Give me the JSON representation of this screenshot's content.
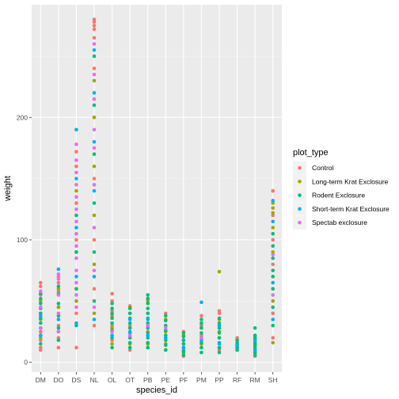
{
  "chart_data": {
    "type": "scatter",
    "xlabel": "species_id",
    "ylabel": "weight",
    "categories": [
      "DM",
      "DO",
      "DS",
      "NL",
      "OL",
      "OT",
      "PB",
      "PE",
      "PF",
      "PM",
      "PP",
      "RF",
      "RM",
      "SH"
    ],
    "yticks": [
      0,
      100,
      200
    ],
    "ylim": [
      -8,
      292
    ],
    "grid": true,
    "legend": {
      "title": "plot_type",
      "position": "right",
      "entries": [
        "Control",
        "Long-term Krat Exclosure",
        "Rodent Exclosure",
        "Short-term Krat Exclosure",
        "Spectab exclosure"
      ]
    },
    "colors": {
      "Control": "#F8766D",
      "Long-term Krat Exclosure": "#A3A500",
      "Rodent Exclosure": "#00BF7D",
      "Short-term Krat Exclosure": "#00B0F6",
      "Spectab exclosure": "#E76BF3"
    },
    "series": [
      {
        "name": "Control",
        "points": [
          [
            "DM",
            10
          ],
          [
            "DM",
            12
          ],
          [
            "DM",
            18
          ],
          [
            "DM",
            25
          ],
          [
            "DM",
            40
          ],
          [
            "DM",
            55
          ],
          [
            "DM",
            62
          ],
          [
            "DM",
            65
          ],
          [
            "DO",
            12
          ],
          [
            "DO",
            20
          ],
          [
            "DO",
            30
          ],
          [
            "DO",
            45
          ],
          [
            "DO",
            58
          ],
          [
            "DO",
            65
          ],
          [
            "DO",
            70
          ],
          [
            "DS",
            12
          ],
          [
            "DS",
            40
          ],
          [
            "DS",
            60
          ],
          [
            "DS",
            100
          ],
          [
            "DS",
            130
          ],
          [
            "DS",
            160
          ],
          [
            "DS",
            172
          ],
          [
            "NL",
            30
          ],
          [
            "NL",
            60
          ],
          [
            "NL",
            100
          ],
          [
            "NL",
            150
          ],
          [
            "NL",
            200
          ],
          [
            "NL",
            240
          ],
          [
            "NL",
            265
          ],
          [
            "NL",
            272
          ],
          [
            "NL",
            275
          ],
          [
            "NL",
            278
          ],
          [
            "NL",
            280
          ],
          [
            "OL",
            18
          ],
          [
            "OL",
            30
          ],
          [
            "OL",
            42
          ],
          [
            "OL",
            50
          ],
          [
            "OL",
            56
          ],
          [
            "OT",
            10
          ],
          [
            "OT",
            20
          ],
          [
            "OT",
            30
          ],
          [
            "OT",
            40
          ],
          [
            "OT",
            46
          ],
          [
            "PB",
            12
          ],
          [
            "PB",
            25
          ],
          [
            "PB",
            40
          ],
          [
            "PB",
            52
          ],
          [
            "PE",
            10
          ],
          [
            "PE",
            20
          ],
          [
            "PE",
            30
          ],
          [
            "PE",
            40
          ],
          [
            "PF",
            5
          ],
          [
            "PF",
            10
          ],
          [
            "PF",
            18
          ],
          [
            "PF",
            25
          ],
          [
            "PM",
            12
          ],
          [
            "PM",
            22
          ],
          [
            "PM",
            30
          ],
          [
            "PM",
            38
          ],
          [
            "PP",
            10
          ],
          [
            "PP",
            20
          ],
          [
            "PP",
            30
          ],
          [
            "PP",
            40
          ],
          [
            "PP",
            42
          ],
          [
            "RF",
            10
          ],
          [
            "RF",
            15
          ],
          [
            "RF",
            20
          ],
          [
            "RM",
            5
          ],
          [
            "RM",
            10
          ],
          [
            "RM",
            15
          ],
          [
            "RM",
            20
          ],
          [
            "SH",
            20
          ],
          [
            "SH",
            40
          ],
          [
            "SH",
            60
          ],
          [
            "SH",
            80
          ],
          [
            "SH",
            100
          ],
          [
            "SH",
            120
          ],
          [
            "SH",
            140
          ]
        ]
      },
      {
        "name": "Long-term Krat Exclosure",
        "points": [
          [
            "DM",
            20
          ],
          [
            "DM",
            35
          ],
          [
            "DM",
            50
          ],
          [
            "DO",
            25
          ],
          [
            "DO",
            45
          ],
          [
            "DO",
            60
          ],
          [
            "DS",
            50
          ],
          [
            "DS",
            90
          ],
          [
            "DS",
            140
          ],
          [
            "NL",
            40
          ],
          [
            "NL",
            80
          ],
          [
            "NL",
            120
          ],
          [
            "NL",
            160
          ],
          [
            "NL",
            200
          ],
          [
            "NL",
            230
          ],
          [
            "OL",
            15
          ],
          [
            "OL",
            28
          ],
          [
            "OL",
            38
          ],
          [
            "OT",
            15
          ],
          [
            "OT",
            28
          ],
          [
            "OT",
            45
          ],
          [
            "PB",
            15
          ],
          [
            "PB",
            30
          ],
          [
            "PB",
            50
          ],
          [
            "PE",
            15
          ],
          [
            "PE",
            25
          ],
          [
            "PE",
            35
          ],
          [
            "PF",
            8
          ],
          [
            "PF",
            15
          ],
          [
            "PF",
            22
          ],
          [
            "PM",
            15
          ],
          [
            "PM",
            28
          ],
          [
            "PP",
            12
          ],
          [
            "PP",
            25
          ],
          [
            "PP",
            35
          ],
          [
            "PP",
            74
          ],
          [
            "RF",
            12
          ],
          [
            "RF",
            18
          ],
          [
            "RM",
            8
          ],
          [
            "RM",
            14
          ],
          [
            "SH",
            16
          ],
          [
            "SH",
            50
          ],
          [
            "SH",
            90
          ],
          [
            "SH",
            110
          ],
          [
            "SH",
            122
          ],
          [
            "SH",
            126
          ],
          [
            "SH",
            130
          ]
        ]
      },
      {
        "name": "Rodent Exclosure",
        "points": [
          [
            "DM",
            15
          ],
          [
            "DM",
            22
          ],
          [
            "DM",
            28
          ],
          [
            "DM",
            32
          ],
          [
            "DM",
            36
          ],
          [
            "DM",
            40
          ],
          [
            "DM",
            44
          ],
          [
            "DM",
            48
          ],
          [
            "DM",
            52
          ],
          [
            "DM",
            56
          ],
          [
            "DO",
            18
          ],
          [
            "DO",
            28
          ],
          [
            "DO",
            38
          ],
          [
            "DO",
            48
          ],
          [
            "DO",
            56
          ],
          [
            "DO",
            62
          ],
          [
            "DS",
            30
          ],
          [
            "DS",
            60
          ],
          [
            "DS",
            90
          ],
          [
            "DS",
            120
          ],
          [
            "NL",
            50
          ],
          [
            "NL",
            90
          ],
          [
            "NL",
            130
          ],
          [
            "NL",
            170
          ],
          [
            "NL",
            210
          ],
          [
            "NL",
            250
          ],
          [
            "OL",
            12
          ],
          [
            "OL",
            20
          ],
          [
            "OL",
            26
          ],
          [
            "OL",
            32
          ],
          [
            "OL",
            36
          ],
          [
            "OL",
            40
          ],
          [
            "OL",
            44
          ],
          [
            "OL",
            48
          ],
          [
            "OT",
            12
          ],
          [
            "OT",
            16
          ],
          [
            "OT",
            20
          ],
          [
            "OT",
            24
          ],
          [
            "OT",
            28
          ],
          [
            "OT",
            32
          ],
          [
            "OT",
            36
          ],
          [
            "OT",
            40
          ],
          [
            "OT",
            44
          ],
          [
            "PB",
            12
          ],
          [
            "PB",
            16
          ],
          [
            "PB",
            20
          ],
          [
            "PB",
            24
          ],
          [
            "PB",
            28
          ],
          [
            "PB",
            32
          ],
          [
            "PB",
            36
          ],
          [
            "PB",
            40
          ],
          [
            "PB",
            44
          ],
          [
            "PB",
            48
          ],
          [
            "PB",
            52
          ],
          [
            "PB",
            55
          ],
          [
            "PE",
            10
          ],
          [
            "PE",
            14
          ],
          [
            "PE",
            18
          ],
          [
            "PE",
            22
          ],
          [
            "PE",
            26
          ],
          [
            "PE",
            30
          ],
          [
            "PE",
            34
          ],
          [
            "PE",
            38
          ],
          [
            "PF",
            6
          ],
          [
            "PF",
            9
          ],
          [
            "PF",
            12
          ],
          [
            "PF",
            15
          ],
          [
            "PF",
            18
          ],
          [
            "PF",
            21
          ],
          [
            "PF",
            24
          ],
          [
            "PM",
            8
          ],
          [
            "PM",
            12
          ],
          [
            "PM",
            16
          ],
          [
            "PM",
            20
          ],
          [
            "PM",
            24
          ],
          [
            "PM",
            28
          ],
          [
            "PM",
            32
          ],
          [
            "PM",
            35
          ],
          [
            "PP",
            8
          ],
          [
            "PP",
            12
          ],
          [
            "PP",
            16
          ],
          [
            "PP",
            20
          ],
          [
            "PP",
            24
          ],
          [
            "PP",
            28
          ],
          [
            "PP",
            32
          ],
          [
            "PP",
            36
          ],
          [
            "RF",
            10
          ],
          [
            "RF",
            12
          ],
          [
            "RF",
            14
          ],
          [
            "RF",
            16
          ],
          [
            "RF",
            18
          ],
          [
            "RM",
            6
          ],
          [
            "RM",
            8
          ],
          [
            "RM",
            10
          ],
          [
            "RM",
            12
          ],
          [
            "RM",
            14
          ],
          [
            "RM",
            16
          ],
          [
            "RM",
            18
          ],
          [
            "RM",
            20
          ],
          [
            "RM",
            22
          ],
          [
            "RM",
            28
          ],
          [
            "SH",
            30
          ],
          [
            "SH",
            45
          ],
          [
            "SH",
            60
          ],
          [
            "SH",
            70
          ],
          [
            "SH",
            75
          ],
          [
            "SH",
            85
          ],
          [
            "SH",
            95
          ],
          [
            "SH",
            105
          ]
        ]
      },
      {
        "name": "Short-term Krat Exclosure",
        "points": [
          [
            "DM",
            22
          ],
          [
            "DM",
            38
          ],
          [
            "DO",
            35
          ],
          [
            "DO",
            76
          ],
          [
            "DS",
            32
          ],
          [
            "DS",
            70
          ],
          [
            "DS",
            110
          ],
          [
            "DS",
            150
          ],
          [
            "DS",
            190
          ],
          [
            "NL",
            35
          ],
          [
            "NL",
            70
          ],
          [
            "NL",
            140
          ],
          [
            "NL",
            180
          ],
          [
            "NL",
            220
          ],
          [
            "NL",
            255
          ],
          [
            "OL",
            22
          ],
          [
            "OT",
            25
          ],
          [
            "OT",
            35
          ],
          [
            "PB",
            22
          ],
          [
            "PB",
            35
          ],
          [
            "PE",
            20
          ],
          [
            "PF",
            12
          ],
          [
            "PM",
            18
          ],
          [
            "PM",
            49
          ],
          [
            "PP",
            15
          ],
          [
            "PP",
            30
          ],
          [
            "RF",
            14
          ],
          [
            "RM",
            10
          ],
          [
            "RM",
            18
          ],
          [
            "SH",
            35
          ],
          [
            "SH",
            65
          ],
          [
            "SH",
            115
          ],
          [
            "SH",
            132
          ]
        ]
      },
      {
        "name": "Spectab exclosure",
        "points": [
          [
            "DM",
            28
          ],
          [
            "DM",
            45
          ],
          [
            "DM",
            58
          ],
          [
            "DO",
            25
          ],
          [
            "DO",
            40
          ],
          [
            "DO",
            55
          ],
          [
            "DO",
            68
          ],
          [
            "DO",
            72
          ],
          [
            "DS",
            45
          ],
          [
            "DS",
            55
          ],
          [
            "DS",
            65
          ],
          [
            "DS",
            75
          ],
          [
            "DS",
            85
          ],
          [
            "DS",
            95
          ],
          [
            "DS",
            105
          ],
          [
            "DS",
            115
          ],
          [
            "DS",
            125
          ],
          [
            "DS",
            135
          ],
          [
            "DS",
            145
          ],
          [
            "DS",
            155
          ],
          [
            "DS",
            165
          ],
          [
            "DS",
            178
          ],
          [
            "NL",
            45
          ],
          [
            "NL",
            75
          ],
          [
            "NL",
            110
          ],
          [
            "NL",
            145
          ],
          [
            "NL",
            175
          ],
          [
            "NL",
            190
          ],
          [
            "NL",
            215
          ],
          [
            "NL",
            235
          ],
          [
            "NL",
            260
          ],
          [
            "OL",
            25
          ],
          [
            "OT",
            22
          ],
          [
            "PB",
            30
          ],
          [
            "PE",
            28
          ],
          [
            "PM",
            20
          ],
          [
            "SH",
            55
          ],
          [
            "SH",
            88
          ]
        ]
      }
    ]
  }
}
